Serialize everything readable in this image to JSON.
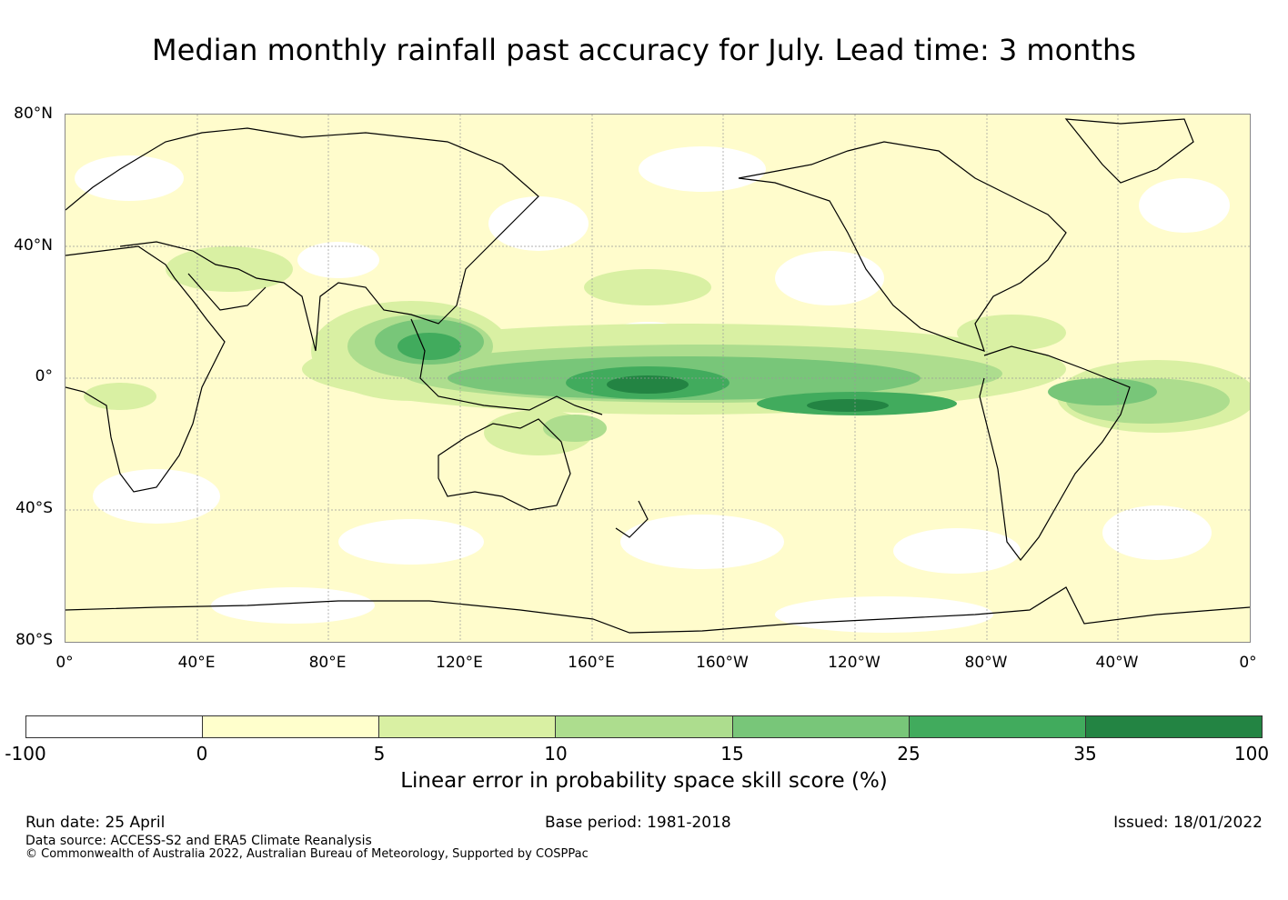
{
  "title": "Median monthly rainfall past accuracy for July. Lead time: 3 months",
  "map": {
    "lat_labels": [
      "80°N",
      "40°N",
      "0°",
      "40°S",
      "80°S"
    ],
    "lon_labels": [
      "0°",
      "40°E",
      "80°E",
      "120°E",
      "160°E",
      "160°W",
      "120°W",
      "80°W",
      "40°W",
      "0°"
    ]
  },
  "colorbar": {
    "title": "Linear error in probability space skill score (%)",
    "ticks": [
      "-100",
      "0",
      "5",
      "10",
      "15",
      "25",
      "35",
      "100"
    ],
    "colors": [
      "#ffffff",
      "#ffffcc",
      "#d9f0a3",
      "#addd8e",
      "#78c679",
      "#41ab5d",
      "#238443"
    ]
  },
  "footer": {
    "run_date": "Run date: 25 April",
    "base_period": "Base period: 1981-2018",
    "issued": "Issued: 18/01/2022",
    "data_source": "Data source: ACCESS-S2 and ERA5 Climate Reanalysis",
    "copyright": "© Commonwealth of Australia 2022, Australian Bureau of Meteorology, Supported by COSPPac"
  }
}
